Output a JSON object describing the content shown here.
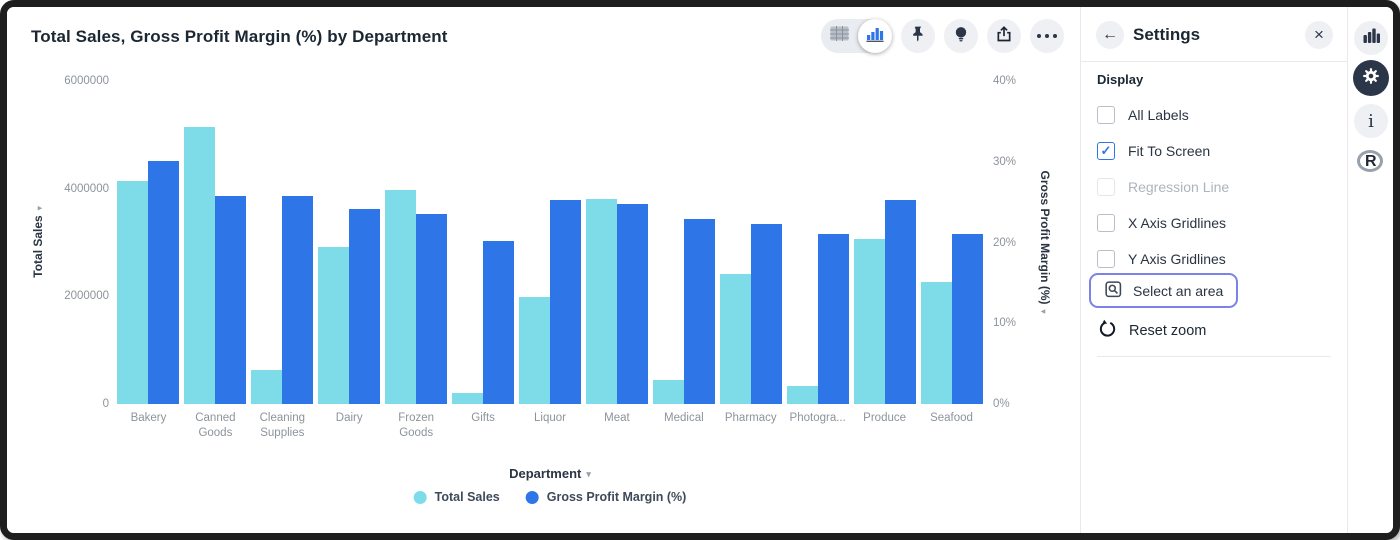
{
  "window": {
    "frame_color": "#1e1e1e"
  },
  "header": {
    "title": "Total Sales, Gross Profit Margin (%) by Department"
  },
  "toolbar": {
    "view_toggle": {
      "options": [
        "table-view",
        "chart-view"
      ],
      "selected": "chart-view"
    },
    "icons": [
      "table-icon",
      "bar-chart-icon",
      "pin-icon",
      "lightbulb-icon",
      "share-icon",
      "more-icon"
    ]
  },
  "chart_data": {
    "type": "bar",
    "title": "Total Sales, Gross Profit Margin (%) by Department",
    "categories": [
      "Bakery",
      "Canned Goods",
      "Cleaning Supplies",
      "Dairy",
      "Frozen Goods",
      "Gifts",
      "Liquor",
      "Meat",
      "Medical",
      "Pharmacy",
      "Photogra...",
      "Produce",
      "Seafood"
    ],
    "series": [
      {
        "name": "Total Sales",
        "axis": "left",
        "color": "#7edce8",
        "values": [
          4140000,
          5150000,
          630000,
          2920000,
          3970000,
          200000,
          1990000,
          3810000,
          450000,
          2410000,
          330000,
          3060000,
          2270000
        ]
      },
      {
        "name": "Gross Profit Margin (%)",
        "axis": "right",
        "color": "#2e76e8",
        "values": [
          30.1,
          25.8,
          25.8,
          24.1,
          23.5,
          20.2,
          25.3,
          24.8,
          22.9,
          22.3,
          21.1,
          25.3,
          21.0
        ]
      }
    ],
    "left_axis": {
      "label": "Total Sales",
      "max": 6000000,
      "min": 0,
      "ticks": [
        "6000000",
        "4000000",
        "2000000",
        "0"
      ]
    },
    "right_axis": {
      "label": "Gross Profit Margin (%)",
      "max": 40,
      "min": 0,
      "ticks": [
        "40%",
        "30%",
        "20%",
        "10%",
        "0%"
      ]
    },
    "xlabel": "Department",
    "legend_position": "bottom",
    "gridlines": false
  },
  "settings": {
    "back_icon": "←",
    "title": "Settings",
    "close_icon": "×",
    "section_label": "Display",
    "check_glyph": "✓",
    "checkboxes": [
      {
        "label": "All Labels",
        "checked": false,
        "disabled": false
      },
      {
        "label": "Fit To Screen",
        "checked": true,
        "disabled": false
      },
      {
        "label": "Regression Line",
        "checked": false,
        "disabled": true
      },
      {
        "label": "X Axis Gridlines",
        "checked": false,
        "disabled": false
      },
      {
        "label": "Y Axis Gridlines",
        "checked": false,
        "disabled": false
      }
    ],
    "select_area_label": "Select an area",
    "select_area_highlight": "#7b82e8",
    "reset_zoom_label": "Reset zoom"
  },
  "rail": {
    "icons": [
      "bar-chart-icon",
      "gear-icon",
      "info-icon",
      "r-logo-icon"
    ],
    "active": "gear-icon",
    "info_glyph": "i",
    "r_glyph": "R"
  },
  "colors": {
    "total_sales": "#7edce8",
    "gross_profit_margin": "#2e76e8",
    "text_dark": "#1b2733",
    "text_gray": "#8d939c",
    "panel_divider": "#e7e9ed"
  }
}
